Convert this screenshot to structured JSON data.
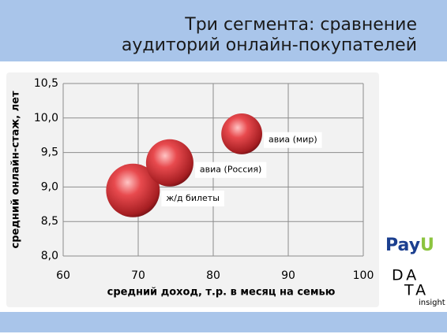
{
  "title": [
    "Три сегмента: сравнение",
    "аудиторий онлайн-покупателей"
  ],
  "logos": {
    "payu": [
      "Pay",
      "U"
    ],
    "data": [
      "DA",
      "TA"
    ],
    "insight": "insight"
  },
  "chart_data": {
    "type": "bubble",
    "xlabel": "средний доход, т.р. в месяц на семью",
    "ylabel": "средний онлайн-стаж, лет",
    "x": [
      69.3,
      74.2,
      83.8
    ],
    "values": [
      8.95,
      9.35,
      9.77
    ],
    "sizes": [
      100,
      78,
      58
    ],
    "labels": [
      "ж/д билеты",
      "авиа (Россия)",
      "авиа (мир)"
    ],
    "color": "#e0393e",
    "xlim": [
      60,
      100
    ],
    "xticks": [
      60,
      70,
      80,
      90,
      100
    ],
    "ylim": [
      8.0,
      10.5
    ],
    "yticks": [
      {
        "value": 8.0,
        "label": "8,0"
      },
      {
        "value": 8.5,
        "label": "8,5"
      },
      {
        "value": 9.0,
        "label": "9,0"
      },
      {
        "value": 9.5,
        "label": "9,5"
      },
      {
        "value": 10.0,
        "label": "10,0"
      },
      {
        "value": 10.5,
        "label": "10,5"
      }
    ],
    "grid": true
  }
}
